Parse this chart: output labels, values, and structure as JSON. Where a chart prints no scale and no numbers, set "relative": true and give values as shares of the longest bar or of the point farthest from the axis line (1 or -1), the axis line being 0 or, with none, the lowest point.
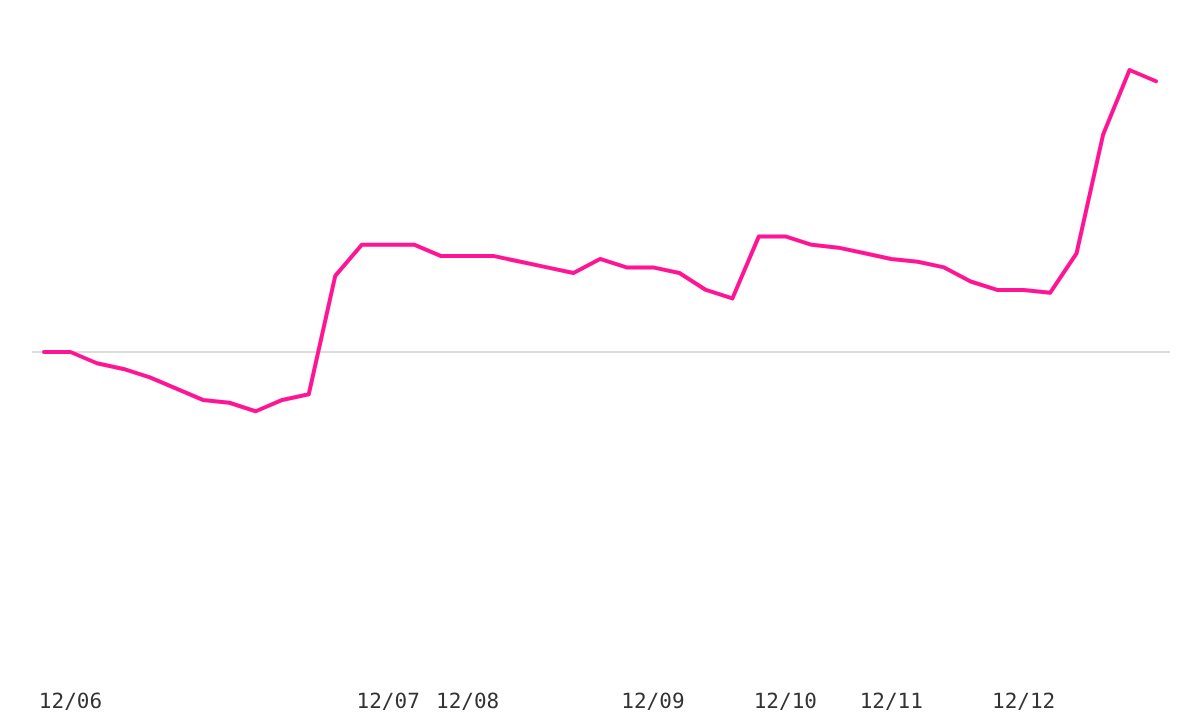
{
  "chart_data": {
    "type": "line",
    "relative": true,
    "categories": [
      null,
      "12/06",
      null,
      null,
      null,
      null,
      null,
      null,
      null,
      null,
      null,
      null,
      null,
      "12/07",
      null,
      null,
      "12/08",
      null,
      null,
      null,
      null,
      null,
      null,
      "12/09",
      null,
      null,
      null,
      null,
      "12/10",
      null,
      null,
      null,
      "12/11",
      null,
      null,
      null,
      null,
      "12/12",
      null,
      null,
      null,
      null,
      null
    ],
    "series": [
      {
        "color": "#ff1493",
        "values": [
          0,
          0,
          -0.04,
          -0.06,
          -0.09,
          -0.13,
          -0.17,
          -0.18,
          -0.21,
          -0.17,
          -0.15,
          0.27,
          0.38,
          0.38,
          0.38,
          0.34,
          0.34,
          0.34,
          0.32,
          0.3,
          0.28,
          0.33,
          0.3,
          0.3,
          0.28,
          0.22,
          0.19,
          0.41,
          0.41,
          0.38,
          0.37,
          0.35,
          0.33,
          0.32,
          0.3,
          0.25,
          0.22,
          0.22,
          0.21,
          0.35,
          0.77,
          1,
          0.96
        ]
      }
    ]
  }
}
